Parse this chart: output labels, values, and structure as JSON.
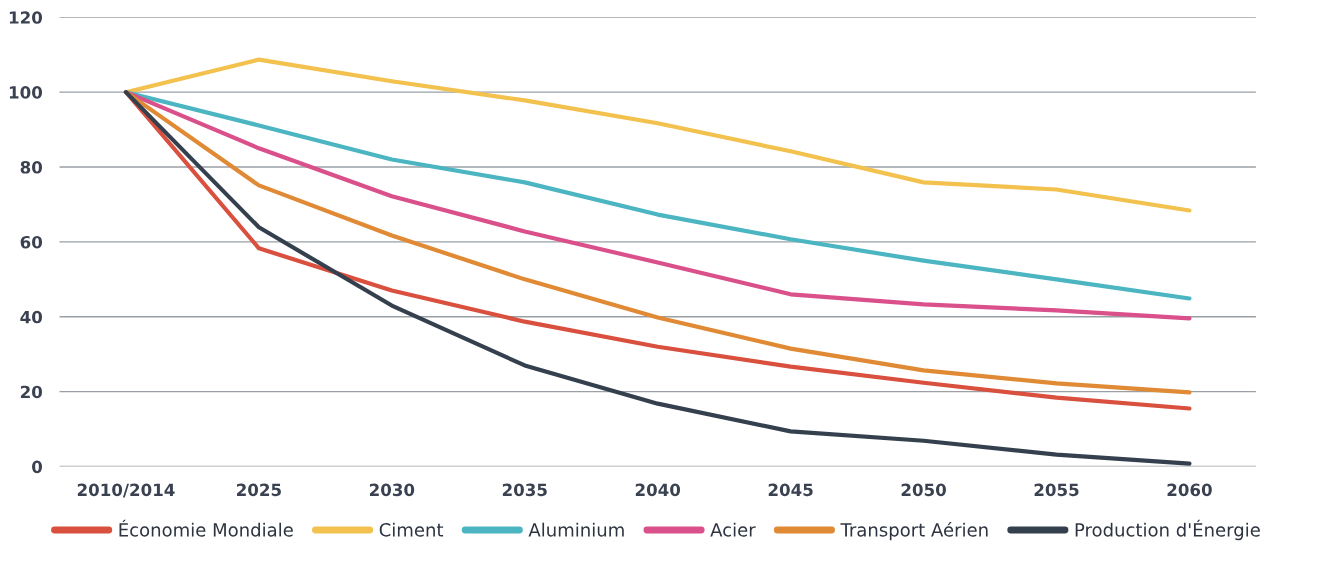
{
  "chart_data": {
    "type": "line",
    "categories": [
      "2010/2014",
      "2025",
      "2030",
      "2035",
      "2040",
      "2045",
      "2050",
      "2055",
      "2060"
    ],
    "series": [
      {
        "name": "Économie Mondiale",
        "color": "#d9503f",
        "values": [
          100,
          58.3,
          47,
          38.7,
          32,
          26.7,
          22.4,
          18.4,
          15.5
        ]
      },
      {
        "name": "Ciment",
        "color": "#f2c14e",
        "values": [
          100,
          108.7,
          102.9,
          97.8,
          91.7,
          84.2,
          75.9,
          74,
          68.4
        ]
      },
      {
        "name": "Aluminium",
        "color": "#4bb5c1",
        "values": [
          100,
          91.1,
          82,
          75.9,
          67.3,
          60.7,
          55,
          50,
          44.9
        ]
      },
      {
        "name": "Acier",
        "color": "#d9508a",
        "values": [
          100,
          85,
          72.2,
          62.8,
          54.5,
          46,
          43.3,
          41.7,
          39.6
        ]
      },
      {
        "name": "Transport Aérien",
        "color": "#e08a35",
        "values": [
          100,
          75.1,
          61.7,
          50,
          39.8,
          31.5,
          25.7,
          22.2,
          19.8
        ]
      },
      {
        "name": "Production d'Énergie",
        "color": "#35404f",
        "values": [
          100,
          63.9,
          43,
          27,
          16.8,
          9.4,
          6.9,
          3.2,
          0.8
        ]
      }
    ],
    "ylim": [
      0,
      120
    ],
    "yticks": [
      0,
      20,
      40,
      60,
      80,
      100,
      120
    ],
    "grid": "y",
    "legend": "bottom",
    "marker": "none",
    "line_style": "solid"
  }
}
